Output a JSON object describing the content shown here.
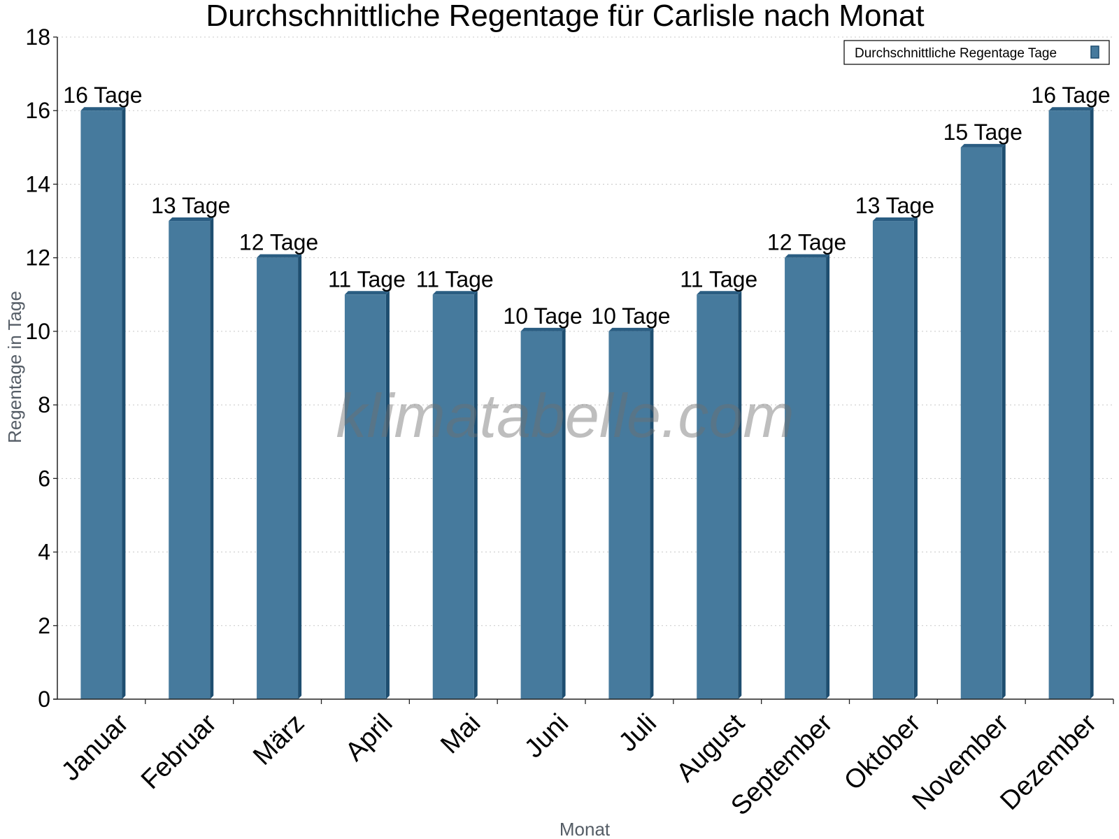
{
  "chart_data": {
    "type": "bar",
    "title": "Durchschnittliche Regentage für Carlisle nach Monat",
    "xlabel": "Monat",
    "ylabel": "Regentage in Tage",
    "ylim": [
      0,
      18
    ],
    "yticks": [
      0,
      2,
      4,
      6,
      8,
      10,
      12,
      14,
      16,
      18
    ],
    "grid": true,
    "legend_position": "top-right",
    "categories": [
      "Januar",
      "Februar",
      "März",
      "April",
      "Mai",
      "Juni",
      "Juli",
      "August",
      "September",
      "Oktober",
      "November",
      "Dezember"
    ],
    "series": [
      {
        "name": "Durchschnittliche Regentage Tage",
        "values": [
          16,
          13,
          12,
          11,
          11,
          10,
          10,
          11,
          12,
          13,
          15,
          16
        ],
        "labels": [
          "16 Tage",
          "13 Tage",
          "12 Tage",
          "11 Tage",
          "11 Tage",
          "10 Tage",
          "10 Tage",
          "11 Tage",
          "12 Tage",
          "13 Tage",
          "15 Tage",
          "16 Tage"
        ]
      }
    ],
    "colors": {
      "bar": "#467a9d",
      "bar_side": "#1e4e70",
      "bar_top": "#2a5d82",
      "grid": "#c8c8c8",
      "axis": "#222222"
    }
  },
  "watermark": "klimatabelle.com"
}
